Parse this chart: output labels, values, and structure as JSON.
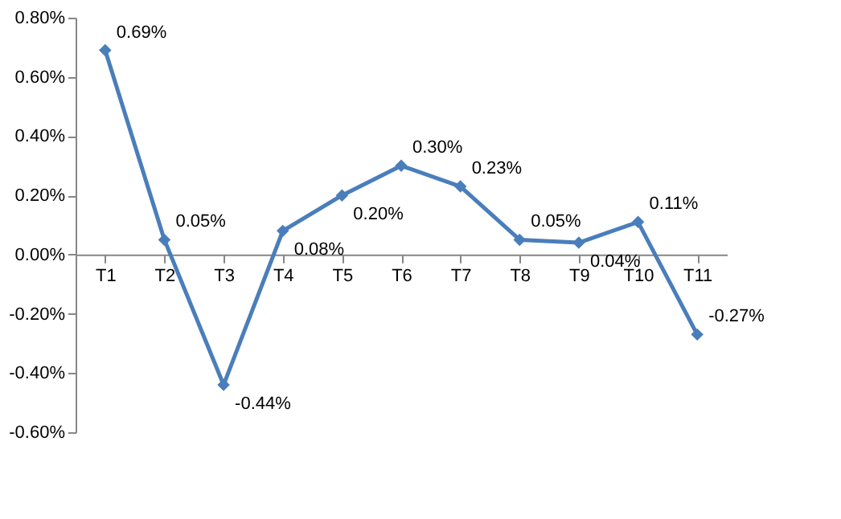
{
  "chart_data": {
    "type": "line",
    "categories": [
      "T1",
      "T2",
      "T3",
      "T4",
      "T5",
      "T6",
      "T7",
      "T8",
      "T9",
      "T10",
      "T11"
    ],
    "series": [
      {
        "color": "#4a7ebb",
        "values": [
          0.69,
          0.05,
          -0.44,
          0.08,
          0.2,
          0.3,
          0.23,
          0.05,
          0.04,
          0.11,
          -0.27
        ],
        "value_labels": [
          "0.69%",
          "0.05%",
          "-0.44%",
          "0.08%",
          "0.20%",
          "0.30%",
          "0.23%",
          "0.05%",
          "0.04%",
          "0.11%",
          "-0.27%"
        ]
      }
    ],
    "ylim": [
      -0.6,
      0.8
    ],
    "yticks": [
      {
        "value": -0.6,
        "label": "-0.60%"
      },
      {
        "value": -0.4,
        "label": "-0.40%"
      },
      {
        "value": -0.2,
        "label": "-0.20%"
      },
      {
        "value": 0,
        "label": "0.00%"
      },
      {
        "value": 0.2,
        "label": "0.20%"
      },
      {
        "value": 0.4,
        "label": "0.40%"
      },
      {
        "value": 0.6,
        "label": "0.60%"
      },
      {
        "value": 0.8,
        "label": "0.80%"
      }
    ],
    "marker": "diamond",
    "line_style": "solid",
    "grid": false
  }
}
